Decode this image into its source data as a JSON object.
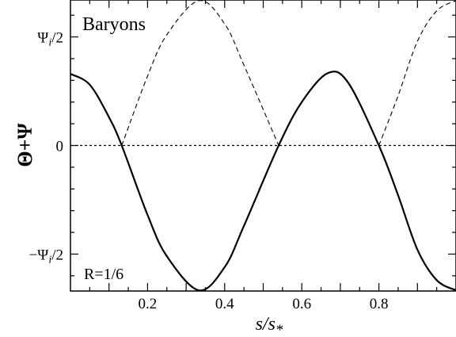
{
  "chart_data": {
    "type": "line",
    "title": "",
    "panel_label": "Baryons",
    "annotation": "R=1/6",
    "xlabel": {
      "main": "s/s",
      "sub": "*"
    },
    "ylabel": "Θ+Ψ",
    "xlim": [
      0,
      1
    ],
    "ylim": [
      -0.67,
      0.67
    ],
    "x_ticks": [
      {
        "value": 0.2,
        "label": "0.2"
      },
      {
        "value": 0.4,
        "label": "0.4"
      },
      {
        "value": 0.6,
        "label": "0.6"
      },
      {
        "value": 0.8,
        "label": "0.8"
      }
    ],
    "y_ticks": [
      {
        "value": 0.5,
        "label": "Ψi/2",
        "main": "Ψ",
        "sub": "i",
        "tail": "/2"
      },
      {
        "value": 0,
        "label": "0",
        "main": "0",
        "sub": "",
        "tail": ""
      },
      {
        "value": -0.5,
        "label": "−Ψi/2",
        "main": "−Ψ",
        "sub": "i",
        "tail": "/2"
      }
    ],
    "zero_line": {
      "y": 0,
      "style": "dotted"
    },
    "series": [
      {
        "style": "solid",
        "x": [
          0,
          0.05,
          0.1,
          0.133,
          0.2,
          0.25,
          0.333,
          0.4,
          0.45,
          0.54,
          0.6,
          0.667,
          0.72,
          0.8,
          0.85,
          0.9,
          0.95,
          1.0
        ],
        "y": [
          0.33,
          0.28,
          0.13,
          0.0,
          -0.32,
          -0.51,
          -0.667,
          -0.56,
          -0.37,
          0.0,
          0.2,
          0.333,
          0.29,
          0.0,
          -0.23,
          -0.48,
          -0.62,
          -0.667
        ]
      },
      {
        "style": "dashed",
        "x": [
          0.133,
          0.2,
          0.25,
          0.333,
          0.4,
          0.45,
          0.54
        ],
        "y": [
          0.0,
          0.32,
          0.51,
          0.667,
          0.56,
          0.37,
          0.0
        ]
      },
      {
        "style": "dashed",
        "x": [
          0.8,
          0.85,
          0.9,
          0.95,
          1.0
        ],
        "y": [
          0.0,
          0.23,
          0.48,
          0.62,
          0.667
        ]
      }
    ]
  }
}
